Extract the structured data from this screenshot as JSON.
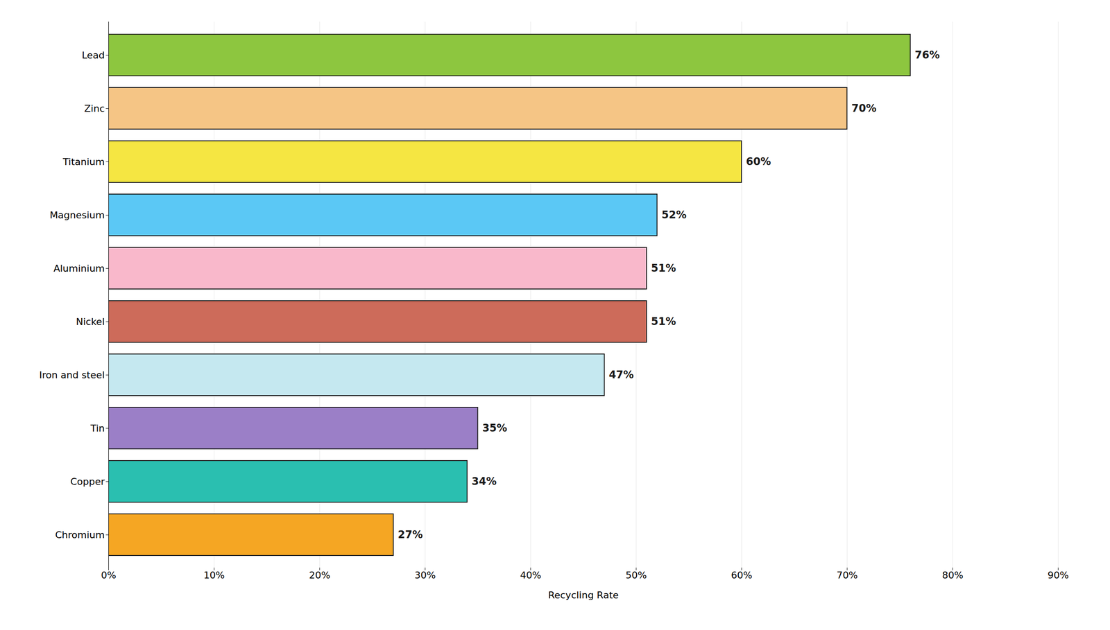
{
  "chart_data": {
    "type": "bar",
    "orientation": "horizontal",
    "xlabel": "Recycling Rate",
    "categories": [
      "Chromium",
      "Copper",
      "Tin",
      "Iron and steel",
      "Nickel",
      "Aluminium",
      "Magnesium",
      "Titanium",
      "Zinc",
      "Lead"
    ],
    "values": [
      27,
      34,
      35,
      47,
      51,
      51,
      52,
      60,
      70,
      76
    ],
    "value_labels": [
      "27%",
      "34%",
      "35%",
      "47%",
      "51%",
      "51%",
      "52%",
      "60%",
      "70%",
      "76%"
    ],
    "colors": [
      "#f5a623",
      "#2abfb0",
      "#9b7fc7",
      "#c5e8f0",
      "#cd6b5a",
      "#f9b8cb",
      "#5bc8f5",
      "#f5e642",
      "#f5c585",
      "#8dc63f"
    ],
    "xlim": [
      0,
      90
    ],
    "xticks": [
      {
        "value": 0,
        "label": "0%"
      },
      {
        "value": 10,
        "label": "10%"
      },
      {
        "value": 20,
        "label": "20%"
      },
      {
        "value": 30,
        "label": "30%"
      },
      {
        "value": 40,
        "label": "40%"
      },
      {
        "value": 50,
        "label": "50%"
      },
      {
        "value": 60,
        "label": "60%"
      },
      {
        "value": 70,
        "label": "70%"
      },
      {
        "value": 80,
        "label": "80%"
      },
      {
        "value": 90,
        "label": "90%"
      }
    ],
    "grid": true,
    "data_labels": true
  }
}
